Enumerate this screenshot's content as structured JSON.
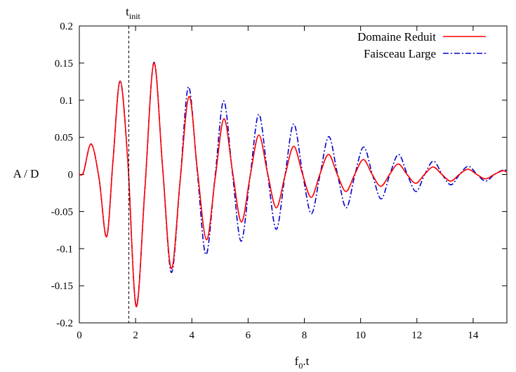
{
  "chart_data": {
    "type": "line",
    "xlabel": "f",
    "xlabel_sub": "0",
    "xlabel_suffix": ".t",
    "ylabel": "A / D",
    "xlim": [
      0,
      15.2
    ],
    "ylim": [
      -0.2,
      0.2
    ],
    "x_ticks": [
      0,
      2,
      4,
      6,
      8,
      10,
      12,
      14
    ],
    "x_tick_labels": [
      "0",
      "2",
      "4",
      "6",
      "8",
      "10",
      "12",
      "14"
    ],
    "y_ticks": [
      -0.2,
      -0.15,
      -0.1,
      -0.05,
      0,
      0.05,
      0.1,
      0.15,
      0.2
    ],
    "y_tick_labels": [
      "-0.2",
      "-0.15",
      "-0.1",
      "-0.05",
      "0",
      "0.05",
      "0.1",
      "0.15",
      "0.2"
    ],
    "grid": false,
    "legend_position": "top-right",
    "annotation": {
      "text": "t",
      "sub": "init",
      "x": 1.76
    },
    "series": [
      {
        "name": "Domaine Reduit",
        "color": "#ff0000",
        "style": "solid",
        "x": [
          0,
          0.15,
          0.42,
          0.7,
          0.97,
          1.2,
          1.45,
          1.72,
          2.02,
          2.33,
          2.65,
          2.96,
          3.27,
          3.58,
          3.9,
          4.2,
          4.52,
          4.83,
          5.14,
          5.45,
          5.76,
          6.07,
          6.38,
          6.69,
          7.0,
          7.31,
          7.62,
          7.93,
          8.24,
          8.55,
          8.86,
          9.17,
          9.48,
          9.79,
          10.1,
          10.41,
          10.72,
          11.03,
          11.34,
          11.65,
          11.96,
          12.27,
          12.58,
          12.89,
          13.2,
          13.51,
          13.82,
          14.13,
          14.44,
          14.75,
          15.05,
          15.2
        ],
        "y": [
          0,
          0.003,
          0.041,
          -0.005,
          -0.084,
          0.02,
          0.126,
          0.02,
          -0.178,
          -0.02,
          0.15,
          0.01,
          -0.127,
          -0.01,
          0.105,
          0.005,
          -0.088,
          -0.005,
          0.075,
          0.003,
          -0.064,
          -0.003,
          0.053,
          0.002,
          -0.045,
          -0.002,
          0.038,
          0.001,
          -0.031,
          0.0,
          0.027,
          0.0,
          -0.023,
          0.0,
          0.02,
          0.0,
          -0.016,
          0.0,
          0.014,
          0.0,
          -0.012,
          0.0,
          0.01,
          0.0,
          -0.009,
          0.0,
          0.007,
          0.0,
          -0.006,
          0.0,
          0.005,
          0.003
        ]
      },
      {
        "name": "Faisceau Large",
        "color": "#0000cc",
        "style": "dash-dot",
        "x": [
          0,
          0.15,
          0.42,
          0.7,
          0.97,
          1.2,
          1.45,
          1.72,
          2.02,
          2.33,
          2.65,
          2.96,
          3.27,
          3.58,
          3.88,
          4.19,
          4.5,
          4.82,
          5.13,
          5.44,
          5.75,
          6.07,
          6.38,
          6.69,
          7.0,
          7.31,
          7.62,
          7.94,
          8.25,
          8.56,
          8.87,
          9.18,
          9.49,
          9.8,
          10.11,
          10.42,
          10.73,
          11.04,
          11.35,
          11.66,
          11.97,
          12.28,
          12.59,
          12.9,
          13.21,
          13.52,
          13.83,
          14.14,
          14.45,
          14.76,
          15.07,
          15.2
        ],
        "y": [
          0,
          0.003,
          0.041,
          -0.005,
          -0.084,
          0.02,
          0.126,
          0.02,
          -0.176,
          -0.02,
          0.151,
          0.01,
          -0.132,
          -0.01,
          0.118,
          0.005,
          -0.108,
          -0.005,
          0.099,
          0.003,
          -0.09,
          -0.003,
          0.081,
          0.002,
          -0.074,
          -0.002,
          0.068,
          0.001,
          -0.053,
          0.0,
          0.051,
          0.0,
          -0.045,
          0.0,
          0.037,
          0.0,
          -0.033,
          0.0,
          0.027,
          0.0,
          -0.023,
          0.0,
          0.018,
          0.0,
          -0.014,
          0.0,
          0.011,
          0.0,
          -0.009,
          0.0,
          0.006,
          0.005
        ]
      }
    ]
  }
}
